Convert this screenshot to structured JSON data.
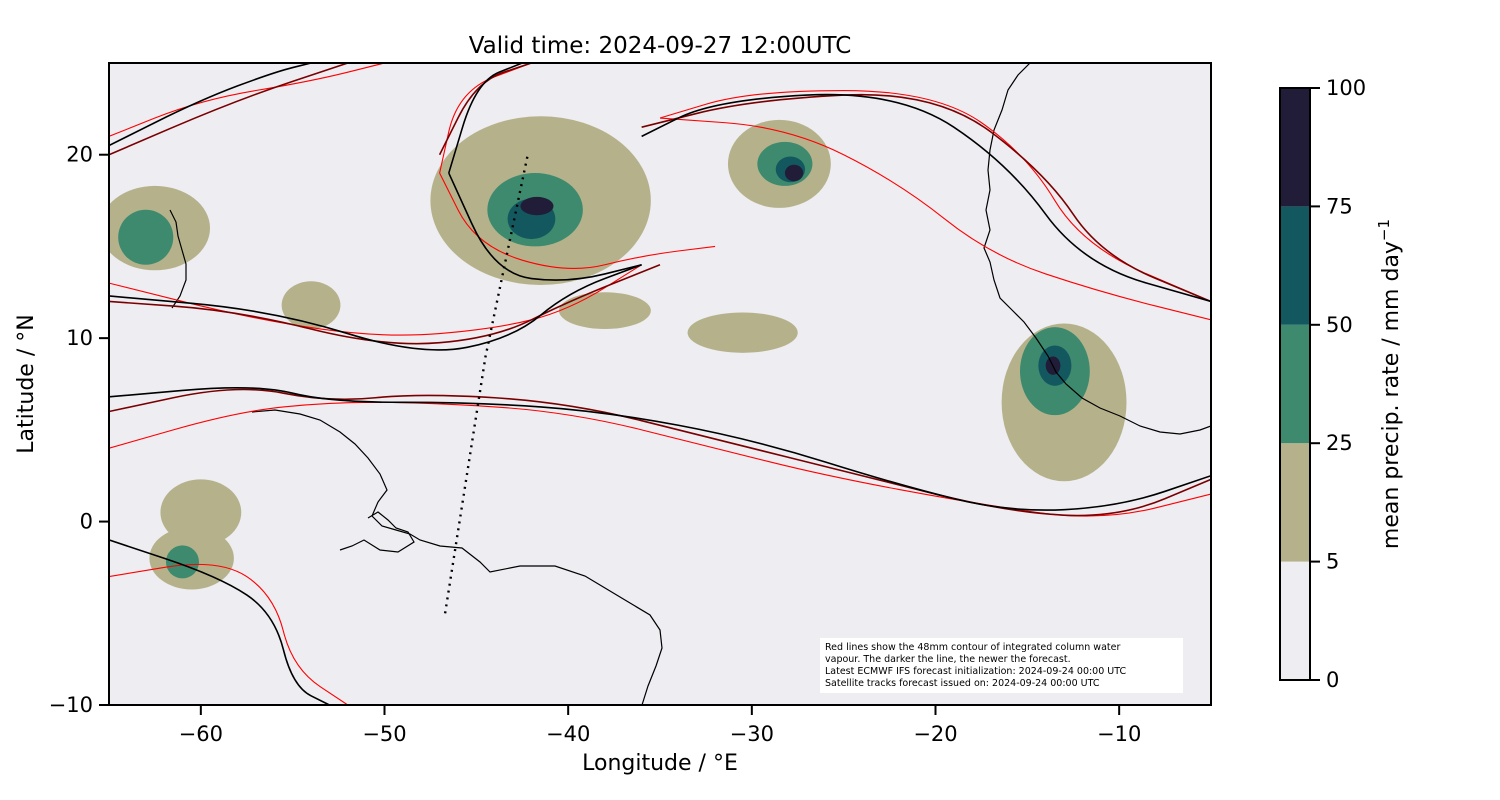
{
  "title": "Valid time: 2024-09-27 12:00UTC",
  "map": {
    "xlabel": "Longitude / °E",
    "ylabel": "Latitude / °N",
    "xlim": [
      -65,
      -5
    ],
    "ylim": [
      -10,
      25
    ],
    "xticks": [
      -60,
      -50,
      -40,
      -30,
      -20,
      -10
    ],
    "yticks": [
      -10,
      0,
      10,
      20
    ],
    "background_color": "#ededf2",
    "coastline_color": "#000000"
  },
  "colorbar": {
    "label": "mean precip. rate / mm day",
    "label_superscript": "−1",
    "levels": [
      0,
      5,
      25,
      50,
      75,
      100
    ],
    "colors": [
      "#ededf2",
      "#b5b28b",
      "#3e8a6e",
      "#14585f",
      "#211c38"
    ]
  },
  "annotation": {
    "lines": [
      "Red lines show the 48mm contour of integrated column water",
      "vapour. The darker the line, the newer the forecast.",
      "Latest ECMWF IFS forecast initialization: 2024-09-24 00:00 UTC",
      "Satellite tracks forecast issued on: 2024-09-24 00:00 UTC"
    ]
  },
  "satellite_track": {
    "points": [
      [
        -46.7,
        -5
      ],
      [
        -44.5,
        9
      ],
      [
        -42.2,
        20
      ]
    ]
  },
  "precip_cells": [
    {
      "lon": -62.5,
      "lat": 16,
      "rx": 3,
      "ry": 2.3,
      "level": 1
    },
    {
      "lon": -63,
      "lat": 15.5,
      "rx": 1.5,
      "ry": 1.5,
      "level": 2
    },
    {
      "lon": -41.5,
      "lat": 17.5,
      "rx": 6,
      "ry": 4.6,
      "level": 1
    },
    {
      "lon": -41.8,
      "lat": 17,
      "rx": 2.6,
      "ry": 2,
      "level": 2
    },
    {
      "lon": -42,
      "lat": 16.5,
      "rx": 1.3,
      "ry": 1.1,
      "level": 3
    },
    {
      "lon": -41.7,
      "lat": 17.2,
      "rx": 0.9,
      "ry": 0.5,
      "level": 4
    },
    {
      "lon": -28.5,
      "lat": 19.5,
      "rx": 2.8,
      "ry": 2.4,
      "level": 1
    },
    {
      "lon": -28.2,
      "lat": 19.5,
      "rx": 1.5,
      "ry": 1.2,
      "level": 2
    },
    {
      "lon": -27.9,
      "lat": 19.2,
      "rx": 0.8,
      "ry": 0.7,
      "level": 3
    },
    {
      "lon": -27.7,
      "lat": 19.0,
      "rx": 0.5,
      "ry": 0.45,
      "level": 4
    },
    {
      "lon": -13,
      "lat": 6.5,
      "rx": 3.4,
      "ry": 4.3,
      "level": 1
    },
    {
      "lon": -13.5,
      "lat": 8.2,
      "rx": 1.9,
      "ry": 2.4,
      "level": 2
    },
    {
      "lon": -13.5,
      "lat": 8.5,
      "rx": 0.9,
      "ry": 1.1,
      "level": 3
    },
    {
      "lon": -13.6,
      "lat": 8.5,
      "rx": 0.4,
      "ry": 0.5,
      "level": 4
    },
    {
      "lon": -60,
      "lat": 0.5,
      "rx": 2.2,
      "ry": 1.8,
      "level": 1
    },
    {
      "lon": -60.5,
      "lat": -2,
      "rx": 2.3,
      "ry": 1.7,
      "level": 1
    },
    {
      "lon": -61,
      "lat": -2.2,
      "rx": 0.9,
      "ry": 0.9,
      "level": 2
    },
    {
      "lon": -38,
      "lat": 11.5,
      "rx": 2.5,
      "ry": 1,
      "level": 1
    },
    {
      "lon": -30.5,
      "lat": 10.3,
      "rx": 3,
      "ry": 1.1,
      "level": 1
    },
    {
      "lon": -54,
      "lat": 11.8,
      "rx": 1.6,
      "ry": 1.3,
      "level": 1
    }
  ],
  "iwv_contours": [
    {
      "color": "#ff0000",
      "points": [
        [
          -65,
          21
        ],
        [
          -60,
          23
        ],
        [
          -54,
          24
        ],
        [
          -50,
          25
        ]
      ]
    },
    {
      "color": "#ff0000",
      "points": [
        [
          -47,
          19
        ],
        [
          -46,
          23.5
        ],
        [
          -42,
          25
        ]
      ]
    },
    {
      "color": "#ff0000",
      "points": [
        [
          -47,
          19
        ],
        [
          -45,
          15
        ],
        [
          -40,
          13.5
        ],
        [
          -36,
          14.5
        ],
        [
          -32,
          15
        ]
      ]
    },
    {
      "color": "#ff0000",
      "points": [
        [
          -35,
          22
        ],
        [
          -28,
          21.5
        ],
        [
          -22,
          18.5
        ],
        [
          -17,
          14.5
        ],
        [
          -11,
          12.5
        ],
        [
          -5,
          11
        ]
      ]
    },
    {
      "color": "#ff0000",
      "points": [
        [
          -35,
          22
        ],
        [
          -30,
          23.5
        ],
        [
          -20,
          23.5
        ],
        [
          -15,
          20
        ],
        [
          -12,
          15
        ],
        [
          -5,
          12
        ]
      ]
    },
    {
      "color": "#ff0000",
      "points": [
        [
          -65,
          4
        ],
        [
          -58,
          6
        ],
        [
          -53,
          6.5
        ],
        [
          -48,
          6.5
        ],
        [
          -40,
          6
        ],
        [
          -32,
          4
        ],
        [
          -26,
          2.5
        ],
        [
          -18,
          1
        ],
        [
          -11,
          0
        ],
        [
          -5,
          1.5
        ]
      ]
    },
    {
      "color": "#ff0000",
      "points": [
        [
          -65,
          13
        ],
        [
          -57,
          11
        ],
        [
          -50,
          10
        ],
        [
          -44,
          10.5
        ],
        [
          -40,
          11.5
        ],
        [
          -36,
          14
        ]
      ]
    },
    {
      "color": "#ff0000",
      "points": [
        [
          -65,
          -3
        ],
        [
          -59,
          -2
        ],
        [
          -56,
          -4
        ],
        [
          -55,
          -8
        ],
        [
          -52,
          -10
        ]
      ]
    },
    {
      "color": "#7a0000",
      "points": [
        [
          -65,
          6
        ],
        [
          -58,
          7.5
        ],
        [
          -53,
          6.5
        ],
        [
          -48,
          7
        ],
        [
          -40,
          6.5
        ],
        [
          -32,
          4.5
        ],
        [
          -24,
          2.5
        ],
        [
          -16,
          0.5
        ],
        [
          -10,
          0.2
        ],
        [
          -5,
          2.3
        ]
      ]
    },
    {
      "color": "#7a0000",
      "points": [
        [
          -65,
          12
        ],
        [
          -58,
          11.5
        ],
        [
          -50,
          9.5
        ],
        [
          -44,
          10
        ],
        [
          -40,
          12
        ],
        [
          -35,
          14
        ]
      ]
    },
    {
      "color": "#7a0000",
      "points": [
        [
          -36,
          21.5
        ],
        [
          -30,
          23
        ],
        [
          -20,
          23.5
        ],
        [
          -14,
          19
        ],
        [
          -11,
          14.5
        ],
        [
          -5,
          12
        ]
      ]
    },
    {
      "color": "#7a0000",
      "points": [
        [
          -65,
          20
        ],
        [
          -58,
          23
        ],
        [
          -52,
          25
        ]
      ]
    },
    {
      "color": "#7a0000",
      "points": [
        [
          -47,
          20
        ],
        [
          -45,
          24
        ],
        [
          -42,
          25
        ]
      ]
    },
    {
      "color": "#000000",
      "points": [
        [
          -65,
          6.8
        ],
        [
          -57,
          7.5
        ],
        [
          -53,
          6.5
        ],
        [
          -45,
          6.5
        ],
        [
          -38,
          6
        ],
        [
          -30,
          4.5
        ],
        [
          -22,
          2
        ],
        [
          -16,
          0.5
        ],
        [
          -10,
          0.8
        ],
        [
          -5,
          2.5
        ]
      ]
    },
    {
      "color": "#000000",
      "points": [
        [
          -65,
          12.3
        ],
        [
          -56,
          11.5
        ],
        [
          -48,
          9
        ],
        [
          -43,
          10
        ],
        [
          -40,
          12.5
        ],
        [
          -36,
          14
        ]
      ]
    },
    {
      "color": "#000000",
      "points": [
        [
          -46.5,
          19
        ],
        [
          -44,
          13.5
        ],
        [
          -40,
          13
        ],
        [
          -36,
          14
        ]
      ]
    },
    {
      "color": "#000000",
      "points": [
        [
          -46.5,
          19
        ],
        [
          -45,
          24
        ],
        [
          -42.5,
          25
        ]
      ]
    },
    {
      "color": "#000000",
      "points": [
        [
          -36,
          21
        ],
        [
          -32,
          23
        ],
        [
          -22,
          23.5
        ],
        [
          -16,
          19.5
        ],
        [
          -12,
          14
        ],
        [
          -5,
          12
        ]
      ]
    },
    {
      "color": "#000000",
      "points": [
        [
          -65,
          20.5
        ],
        [
          -60,
          23
        ],
        [
          -56,
          24.5
        ],
        [
          -54,
          25
        ]
      ]
    },
    {
      "color": "#000000",
      "points": [
        [
          -65,
          -1
        ],
        [
          -59,
          -3
        ],
        [
          -56,
          -5
        ],
        [
          -55,
          -9
        ],
        [
          -53,
          -10
        ]
      ]
    }
  ]
}
